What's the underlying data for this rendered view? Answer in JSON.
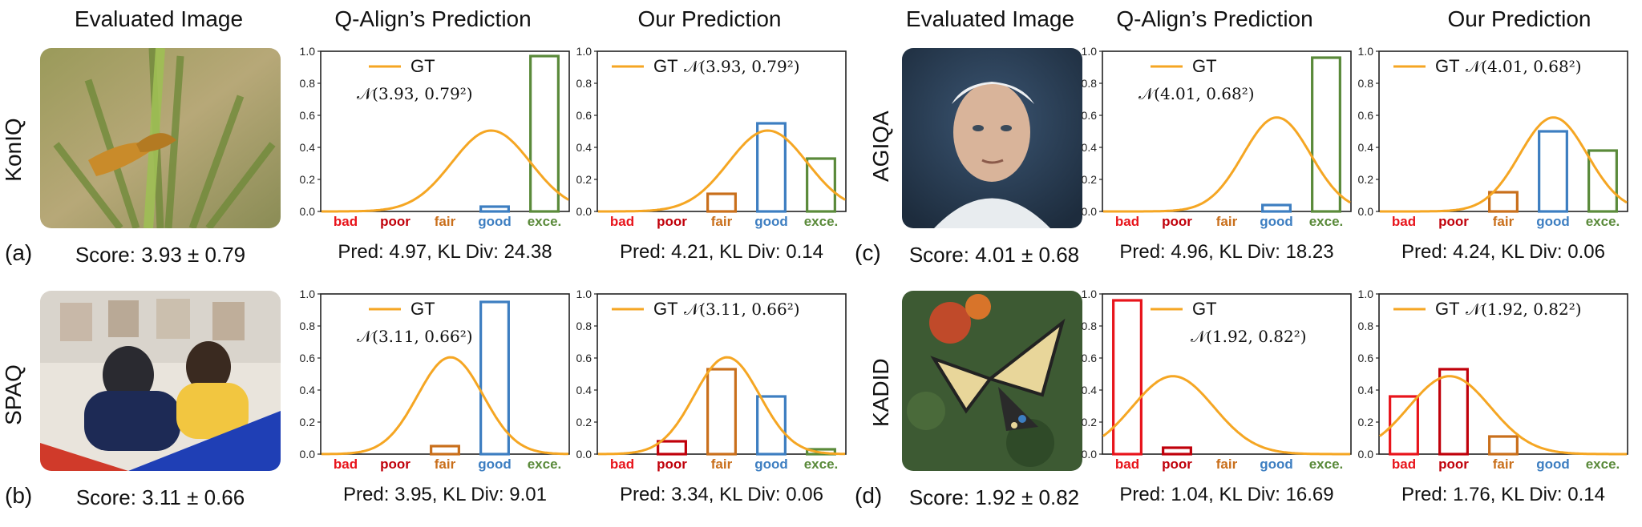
{
  "headers": {
    "evaluated_image": "Evaluated Image",
    "qalign": "Q-Align’s Prediction",
    "ours": "Our Prediction"
  },
  "colors": {
    "gt_curve": "#F5A623",
    "bad": "#E8141B",
    "poor": "#C0000A",
    "fair": "#C96F1B",
    "good": "#3D7EC1",
    "exce": "#5A8A3A"
  },
  "panels": [
    {
      "tag": "(a)",
      "dataset": "KonIQ",
      "score": "Score: 3.93 ± 0.79",
      "image_icon": "butterfly-on-grass-icon",
      "qalign": {
        "caption": "Pred: 4.97, KL Div: 24.38",
        "gt_label": "GT",
        "dist_label": "𝒩(3.93, 0.79²)"
      },
      "ours": {
        "caption": "Pred: 4.21, KL Div: 0.14",
        "gt_label": "GT",
        "dist_label": "𝒩(3.93, 0.79²)"
      }
    },
    {
      "tag": "(b)",
      "dataset": "SPAQ",
      "score": "Score: 3.11 ± 0.66",
      "image_icon": "kids-crafting-icon",
      "qalign": {
        "caption": "Pred: 3.95, KL Div: 9.01",
        "gt_label": "GT",
        "dist_label": "𝒩(3.11, 0.66²)"
      },
      "ours": {
        "caption": "Pred: 3.34, KL Div: 0.06",
        "gt_label": "GT",
        "dist_label": "𝒩(3.11, 0.66²)"
      }
    },
    {
      "tag": "(c)",
      "dataset": "AGIQA",
      "score": "Score: 4.01 ± 0.68",
      "image_icon": "elderly-portrait-icon",
      "qalign": {
        "caption": "Pred: 4.96, KL Div: 18.23",
        "gt_label": "GT",
        "dist_label": "𝒩(4.01, 0.68²)"
      },
      "ours": {
        "caption": "Pred: 4.24, KL Div: 0.06",
        "gt_label": "GT",
        "dist_label": "𝒩(4.01, 0.68²)"
      }
    },
    {
      "tag": "(d)",
      "dataset": "KADID",
      "score": "Score: 1.92 ± 0.82",
      "image_icon": "swallowtail-butterfly-icon",
      "qalign": {
        "caption": "Pred: 1.04, KL Div: 16.69",
        "gt_label": "GT",
        "dist_label": "𝒩(1.92, 0.82²)"
      },
      "ours": {
        "caption": "Pred: 1.76, KL Div: 0.14",
        "gt_label": "GT",
        "dist_label": "𝒩(1.92, 0.82²)"
      }
    }
  ],
  "chart_data": [
    {
      "panel": "(a)",
      "chart": "Q-Align’s Prediction",
      "type": "bar",
      "categories": [
        "bad",
        "poor",
        "fair",
        "good",
        "exce."
      ],
      "values": [
        0.0,
        0.0,
        0.0,
        0.03,
        0.97
      ],
      "gt": {
        "mean": 3.93,
        "std": 0.79
      },
      "ylim": [
        0,
        1.0
      ],
      "yticks": [
        0.0,
        0.2,
        0.4,
        0.6,
        0.8,
        1.0
      ]
    },
    {
      "panel": "(a)",
      "chart": "Our Prediction",
      "type": "bar",
      "categories": [
        "bad",
        "poor",
        "fair",
        "good",
        "exce."
      ],
      "values": [
        0.0,
        0.0,
        0.11,
        0.55,
        0.33
      ],
      "gt": {
        "mean": 3.93,
        "std": 0.79
      },
      "ylim": [
        0,
        1.0
      ],
      "yticks": [
        0.0,
        0.2,
        0.4,
        0.6,
        0.8,
        1.0
      ]
    },
    {
      "panel": "(b)",
      "chart": "Q-Align’s Prediction",
      "type": "bar",
      "categories": [
        "bad",
        "poor",
        "fair",
        "good",
        "exce."
      ],
      "values": [
        0.0,
        0.0,
        0.05,
        0.95,
        0.0
      ],
      "gt": {
        "mean": 3.11,
        "std": 0.66
      },
      "ylim": [
        0,
        1.0
      ],
      "yticks": [
        0.0,
        0.2,
        0.4,
        0.6,
        0.8,
        1.0
      ]
    },
    {
      "panel": "(b)",
      "chart": "Our Prediction",
      "type": "bar",
      "categories": [
        "bad",
        "poor",
        "fair",
        "good",
        "exce."
      ],
      "values": [
        0.0,
        0.08,
        0.53,
        0.36,
        0.03
      ],
      "gt": {
        "mean": 3.11,
        "std": 0.66
      },
      "ylim": [
        0,
        1.0
      ],
      "yticks": [
        0.0,
        0.2,
        0.4,
        0.6,
        0.8,
        1.0
      ]
    },
    {
      "panel": "(c)",
      "chart": "Q-Align’s Prediction",
      "type": "bar",
      "categories": [
        "bad",
        "poor",
        "fair",
        "good",
        "exce."
      ],
      "values": [
        0.0,
        0.0,
        0.0,
        0.04,
        0.96
      ],
      "gt": {
        "mean": 4.01,
        "std": 0.68
      },
      "ylim": [
        0,
        1.0
      ],
      "yticks": [
        0.0,
        0.2,
        0.4,
        0.6,
        0.8,
        1.0
      ]
    },
    {
      "panel": "(c)",
      "chart": "Our Prediction",
      "type": "bar",
      "categories": [
        "bad",
        "poor",
        "fair",
        "good",
        "exce."
      ],
      "values": [
        0.0,
        0.0,
        0.12,
        0.5,
        0.38
      ],
      "gt": {
        "mean": 4.01,
        "std": 0.68
      },
      "ylim": [
        0,
        1.0
      ],
      "yticks": [
        0.0,
        0.2,
        0.4,
        0.6,
        0.8,
        1.0
      ]
    },
    {
      "panel": "(d)",
      "chart": "Q-Align’s Prediction",
      "type": "bar",
      "categories": [
        "bad",
        "poor",
        "fair",
        "good",
        "exce."
      ],
      "values": [
        0.96,
        0.04,
        0.0,
        0.0,
        0.0
      ],
      "gt": {
        "mean": 1.92,
        "std": 0.82
      },
      "ylim": [
        0,
        1.0
      ],
      "yticks": [
        0.0,
        0.2,
        0.4,
        0.6,
        0.8,
        1.0
      ]
    },
    {
      "panel": "(d)",
      "chart": "Our Prediction",
      "type": "bar",
      "categories": [
        "bad",
        "poor",
        "fair",
        "good",
        "exce."
      ],
      "values": [
        0.36,
        0.53,
        0.11,
        0.0,
        0.0
      ],
      "gt": {
        "mean": 1.92,
        "std": 0.82
      },
      "ylim": [
        0,
        1.0
      ],
      "yticks": [
        0.0,
        0.2,
        0.4,
        0.6,
        0.8,
        1.0
      ]
    }
  ]
}
